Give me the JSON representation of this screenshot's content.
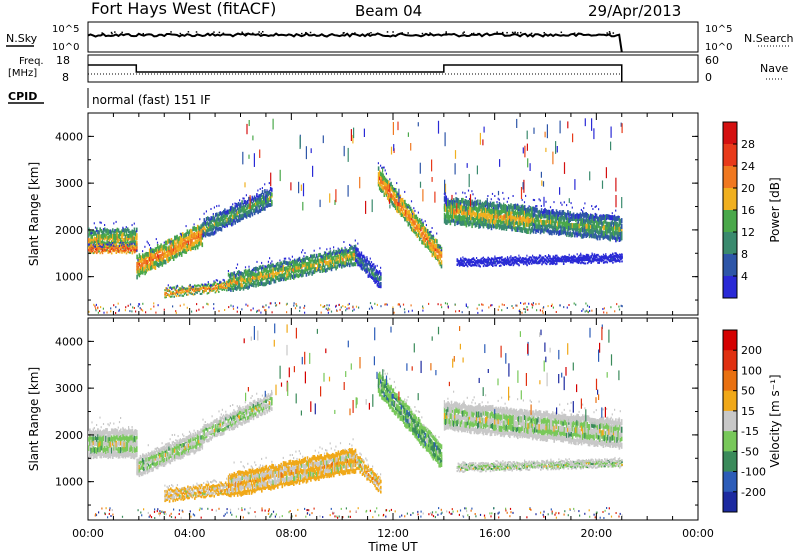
{
  "header": {
    "station": "Fort Hays West (fitACF)",
    "beam": "Beam 04",
    "date": "29/Apr/2013"
  },
  "strip_labels": {
    "nsky": "N.Sky",
    "nsearch": "N.Search",
    "freq": "Freq.",
    "freq_unit": "[MHz]",
    "nave": "Nave",
    "cpid": "CPID",
    "cpid_value": "normal (fast) 151 IF"
  },
  "noise_ticks": {
    "top": "10^5",
    "bottom": "10^0"
  },
  "freq_ticks": {
    "left": [
      "18",
      "8"
    ],
    "right": [
      "60",
      "0"
    ]
  },
  "time_axis": {
    "label": "Time UT",
    "ticks": [
      "00:00",
      "04:00",
      "08:00",
      "12:00",
      "16:00",
      "20:00",
      "00:00"
    ]
  },
  "colors": {
    "power": [
      "#2a2ad6",
      "#2e56a8",
      "#3a8a6e",
      "#4aa84a",
      "#f0b020",
      "#f07820",
      "#e83a1a",
      "#d41010"
    ],
    "velocity": [
      "#1c2aa0",
      "#2c5cb8",
      "#3a8a5a",
      "#78c85a",
      "#c8c8c8",
      "#f0a818",
      "#e87010",
      "#e03010",
      "#d40000"
    ]
  },
  "chart_data": [
    {
      "type": "heatmap",
      "title": "Power",
      "ylabel": "Slant Range [km]",
      "xlabel": "Time UT",
      "xlim": [
        0,
        24
      ],
      "ylim": [
        180,
        4500
      ],
      "yticks": [
        "4000",
        "3000",
        "2000",
        "1000"
      ],
      "colorbar": {
        "label": "Power [dB]",
        "ticks": [
          "28",
          "24",
          "20",
          "16",
          "12",
          "8",
          "4"
        ],
        "range": [
          0,
          30
        ]
      },
      "bands": [
        {
          "t0": 0.0,
          "t1": 1.9,
          "r0": 1800,
          "r1": 1800,
          "w": 180,
          "lv": 4
        },
        {
          "t0": 0.0,
          "t1": 1.9,
          "r0": 1600,
          "r1": 1600,
          "w": 70,
          "lv": 6
        },
        {
          "t0": 1.9,
          "t1": 4.5,
          "r0": 1200,
          "r1": 1900,
          "w": 200,
          "lv": 5
        },
        {
          "t0": 4.5,
          "t1": 7.2,
          "r0": 2000,
          "r1": 2700,
          "w": 170,
          "lv": 3
        },
        {
          "t0": 3.0,
          "t1": 5.5,
          "r0": 650,
          "r1": 800,
          "w": 80,
          "lv": 5
        },
        {
          "t0": 5.5,
          "t1": 10.5,
          "r0": 850,
          "r1": 1450,
          "w": 170,
          "lv": 4
        },
        {
          "t0": 10.5,
          "t1": 11.5,
          "r0": 1450,
          "r1": 900,
          "w": 150,
          "lv": 2
        },
        {
          "t0": 11.4,
          "t1": 13.9,
          "r0": 3100,
          "r1": 1400,
          "w": 190,
          "lv": 5
        },
        {
          "t0": 14.0,
          "t1": 17.5,
          "r0": 2400,
          "r1": 2200,
          "w": 240,
          "lv": 4
        },
        {
          "t0": 17.5,
          "t1": 21.0,
          "r0": 2200,
          "r1": 2000,
          "w": 220,
          "lv": 3
        },
        {
          "t0": 14.5,
          "t1": 21.0,
          "r0": 1300,
          "r1": 1400,
          "w": 60,
          "lv": 0
        }
      ]
    },
    {
      "type": "heatmap",
      "title": "Velocity",
      "ylabel": "Slant Range [km]",
      "xlabel": "Time UT",
      "xlim": [
        0,
        24
      ],
      "ylim": [
        180,
        4500
      ],
      "yticks": [
        "4000",
        "3000",
        "2000",
        "1000"
      ],
      "colorbar": {
        "label": "Velocity [m s⁻¹]",
        "ticks": [
          "200",
          "100",
          "50",
          "15",
          "-15",
          "-50",
          "-100",
          "-200"
        ],
        "range": [
          -250,
          250
        ]
      },
      "bands": [
        {
          "t0": 0.0,
          "t1": 1.9,
          "r0": 1800,
          "r1": 1800,
          "w": 260,
          "lv": 4
        },
        {
          "t0": 1.9,
          "t1": 4.5,
          "r0": 1300,
          "r1": 1900,
          "w": 180,
          "lv": 4
        },
        {
          "t0": 4.5,
          "t1": 7.2,
          "r0": 2000,
          "r1": 2700,
          "w": 160,
          "lv": 4
        },
        {
          "t0": 3.0,
          "t1": 5.5,
          "r0": 700,
          "r1": 850,
          "w": 110,
          "lv": 5
        },
        {
          "t0": 5.5,
          "t1": 10.5,
          "r0": 900,
          "r1": 1450,
          "w": 220,
          "lv": 5
        },
        {
          "t0": 10.5,
          "t1": 11.5,
          "r0": 1450,
          "r1": 900,
          "w": 130,
          "lv": 5
        },
        {
          "t0": 11.4,
          "t1": 13.9,
          "r0": 3100,
          "r1": 1500,
          "w": 210,
          "lv": 3
        },
        {
          "t0": 14.0,
          "t1": 17.5,
          "r0": 2400,
          "r1": 2200,
          "w": 260,
          "lv": 4
        },
        {
          "t0": 17.5,
          "t1": 21.0,
          "r0": 2200,
          "r1": 2000,
          "w": 260,
          "lv": 4
        },
        {
          "t0": 14.5,
          "t1": 21.0,
          "r0": 1300,
          "r1": 1400,
          "w": 60,
          "lv": 4
        }
      ]
    }
  ]
}
